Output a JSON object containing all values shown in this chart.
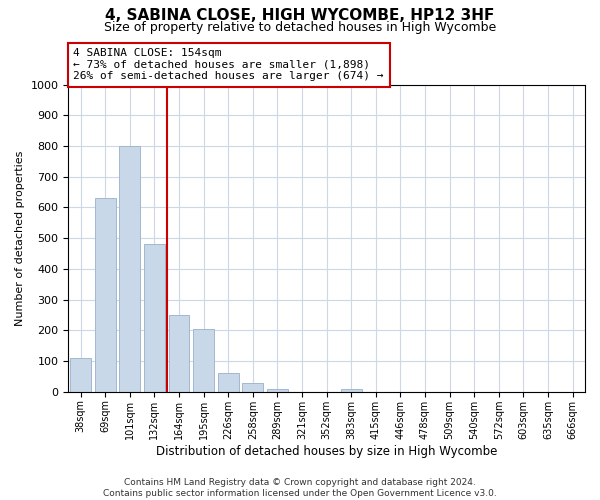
{
  "title": "4, SABINA CLOSE, HIGH WYCOMBE, HP12 3HF",
  "subtitle": "Size of property relative to detached houses in High Wycombe",
  "xlabel": "Distribution of detached houses by size in High Wycombe",
  "ylabel": "Number of detached properties",
  "bar_labels": [
    "38sqm",
    "69sqm",
    "101sqm",
    "132sqm",
    "164sqm",
    "195sqm",
    "226sqm",
    "258sqm",
    "289sqm",
    "321sqm",
    "352sqm",
    "383sqm",
    "415sqm",
    "446sqm",
    "478sqm",
    "509sqm",
    "540sqm",
    "572sqm",
    "603sqm",
    "635sqm",
    "666sqm"
  ],
  "bar_values": [
    110,
    630,
    800,
    480,
    250,
    205,
    60,
    30,
    10,
    0,
    0,
    10,
    0,
    0,
    0,
    0,
    0,
    0,
    0,
    0,
    0
  ],
  "bar_color": "#c8d8e8",
  "bar_edge_color": "#a0b8d0",
  "vline_color": "#cc0000",
  "vline_x": 3.5,
  "annotation_line1": "4 SABINA CLOSE: 154sqm",
  "annotation_line2": "← 73% of detached houses are smaller (1,898)",
  "annotation_line3": "26% of semi-detached houses are larger (674) →",
  "annotation_box_color": "#ffffff",
  "annotation_box_edge": "#cc0000",
  "ylim": [
    0,
    1000
  ],
  "yticks": [
    0,
    100,
    200,
    300,
    400,
    500,
    600,
    700,
    800,
    900,
    1000
  ],
  "footer": "Contains HM Land Registry data © Crown copyright and database right 2024.\nContains public sector information licensed under the Open Government Licence v3.0.",
  "background_color": "#ffffff",
  "grid_color": "#ccd8e8"
}
